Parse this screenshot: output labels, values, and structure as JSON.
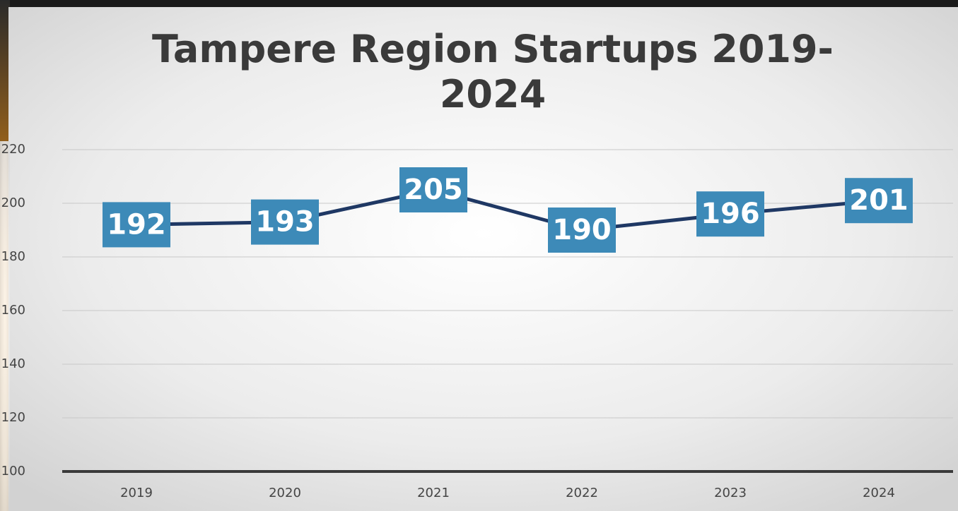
{
  "chart_data": {
    "type": "line",
    "title": "Tampere Region Startups 2019-2024",
    "categories": [
      "2019",
      "2020",
      "2021",
      "2022",
      "2023",
      "2024"
    ],
    "series": [
      {
        "name": "Startups",
        "color": "#1f3864",
        "values": [
          192,
          193,
          205,
          190,
          196,
          201
        ]
      }
    ],
    "label_color": "#3d8ab8",
    "ylim": [
      100,
      220
    ],
    "yticks": [
      100,
      120,
      140,
      160,
      180,
      200,
      220
    ],
    "grid": true
  }
}
